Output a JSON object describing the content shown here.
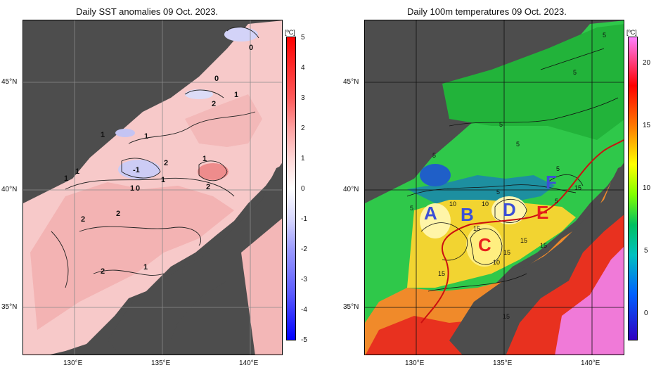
{
  "left_title": "Daily SST anomalies 09 Oct. 2023.",
  "right_title": "Daily 100m temperatures 09 Oct. 2023.",
  "lat_labels": [
    "45°N",
    "40°N",
    "35°N"
  ],
  "lon_labels": [
    "130°E",
    "135°E",
    "140°E"
  ],
  "left_colorbar": {
    "unit": "[ºC]",
    "ticks": [
      "5",
      "4",
      "3",
      "2",
      "1",
      "0",
      "-1",
      "-2",
      "-3",
      "-4",
      "-5"
    ],
    "colors": [
      "#ff0000",
      "#ff5a5a",
      "#ffa0a0",
      "#ffd6d6",
      "#ffffff",
      "#d8d8ff",
      "#9c9cff",
      "#5a5aff",
      "#0000ff"
    ]
  },
  "right_colorbar": {
    "unit": "[ºC]",
    "ticks": [
      "20",
      "15",
      "10",
      "5",
      "0"
    ],
    "colors": [
      "#ff80ff",
      "#ff0000",
      "#ff8000",
      "#ffff00",
      "#80ff00",
      "#00c060",
      "#00c0c0",
      "#0060ff",
      "#3000c0"
    ]
  },
  "left_contour_labels": [
    "0",
    "0",
    "1",
    "2",
    "1",
    "1",
    "1",
    "1",
    "1",
    "-1",
    "1",
    "0",
    "1",
    "2",
    "2",
    "2",
    "2",
    "1",
    "2"
  ],
  "right_contour_labels": [
    "5",
    "5",
    "5",
    "5",
    "5",
    "5",
    "10",
    "5",
    "5",
    "15",
    "15",
    "10",
    "15",
    "15",
    "10",
    "15",
    "15",
    "15",
    "5"
  ],
  "regions": [
    "A",
    "B",
    "C",
    "D",
    "E",
    "F"
  ],
  "colors": {
    "land": "#4d4d4d",
    "region_blue": "#3c4fd6",
    "region_red": "#e8201c",
    "route": "#cc1010"
  }
}
